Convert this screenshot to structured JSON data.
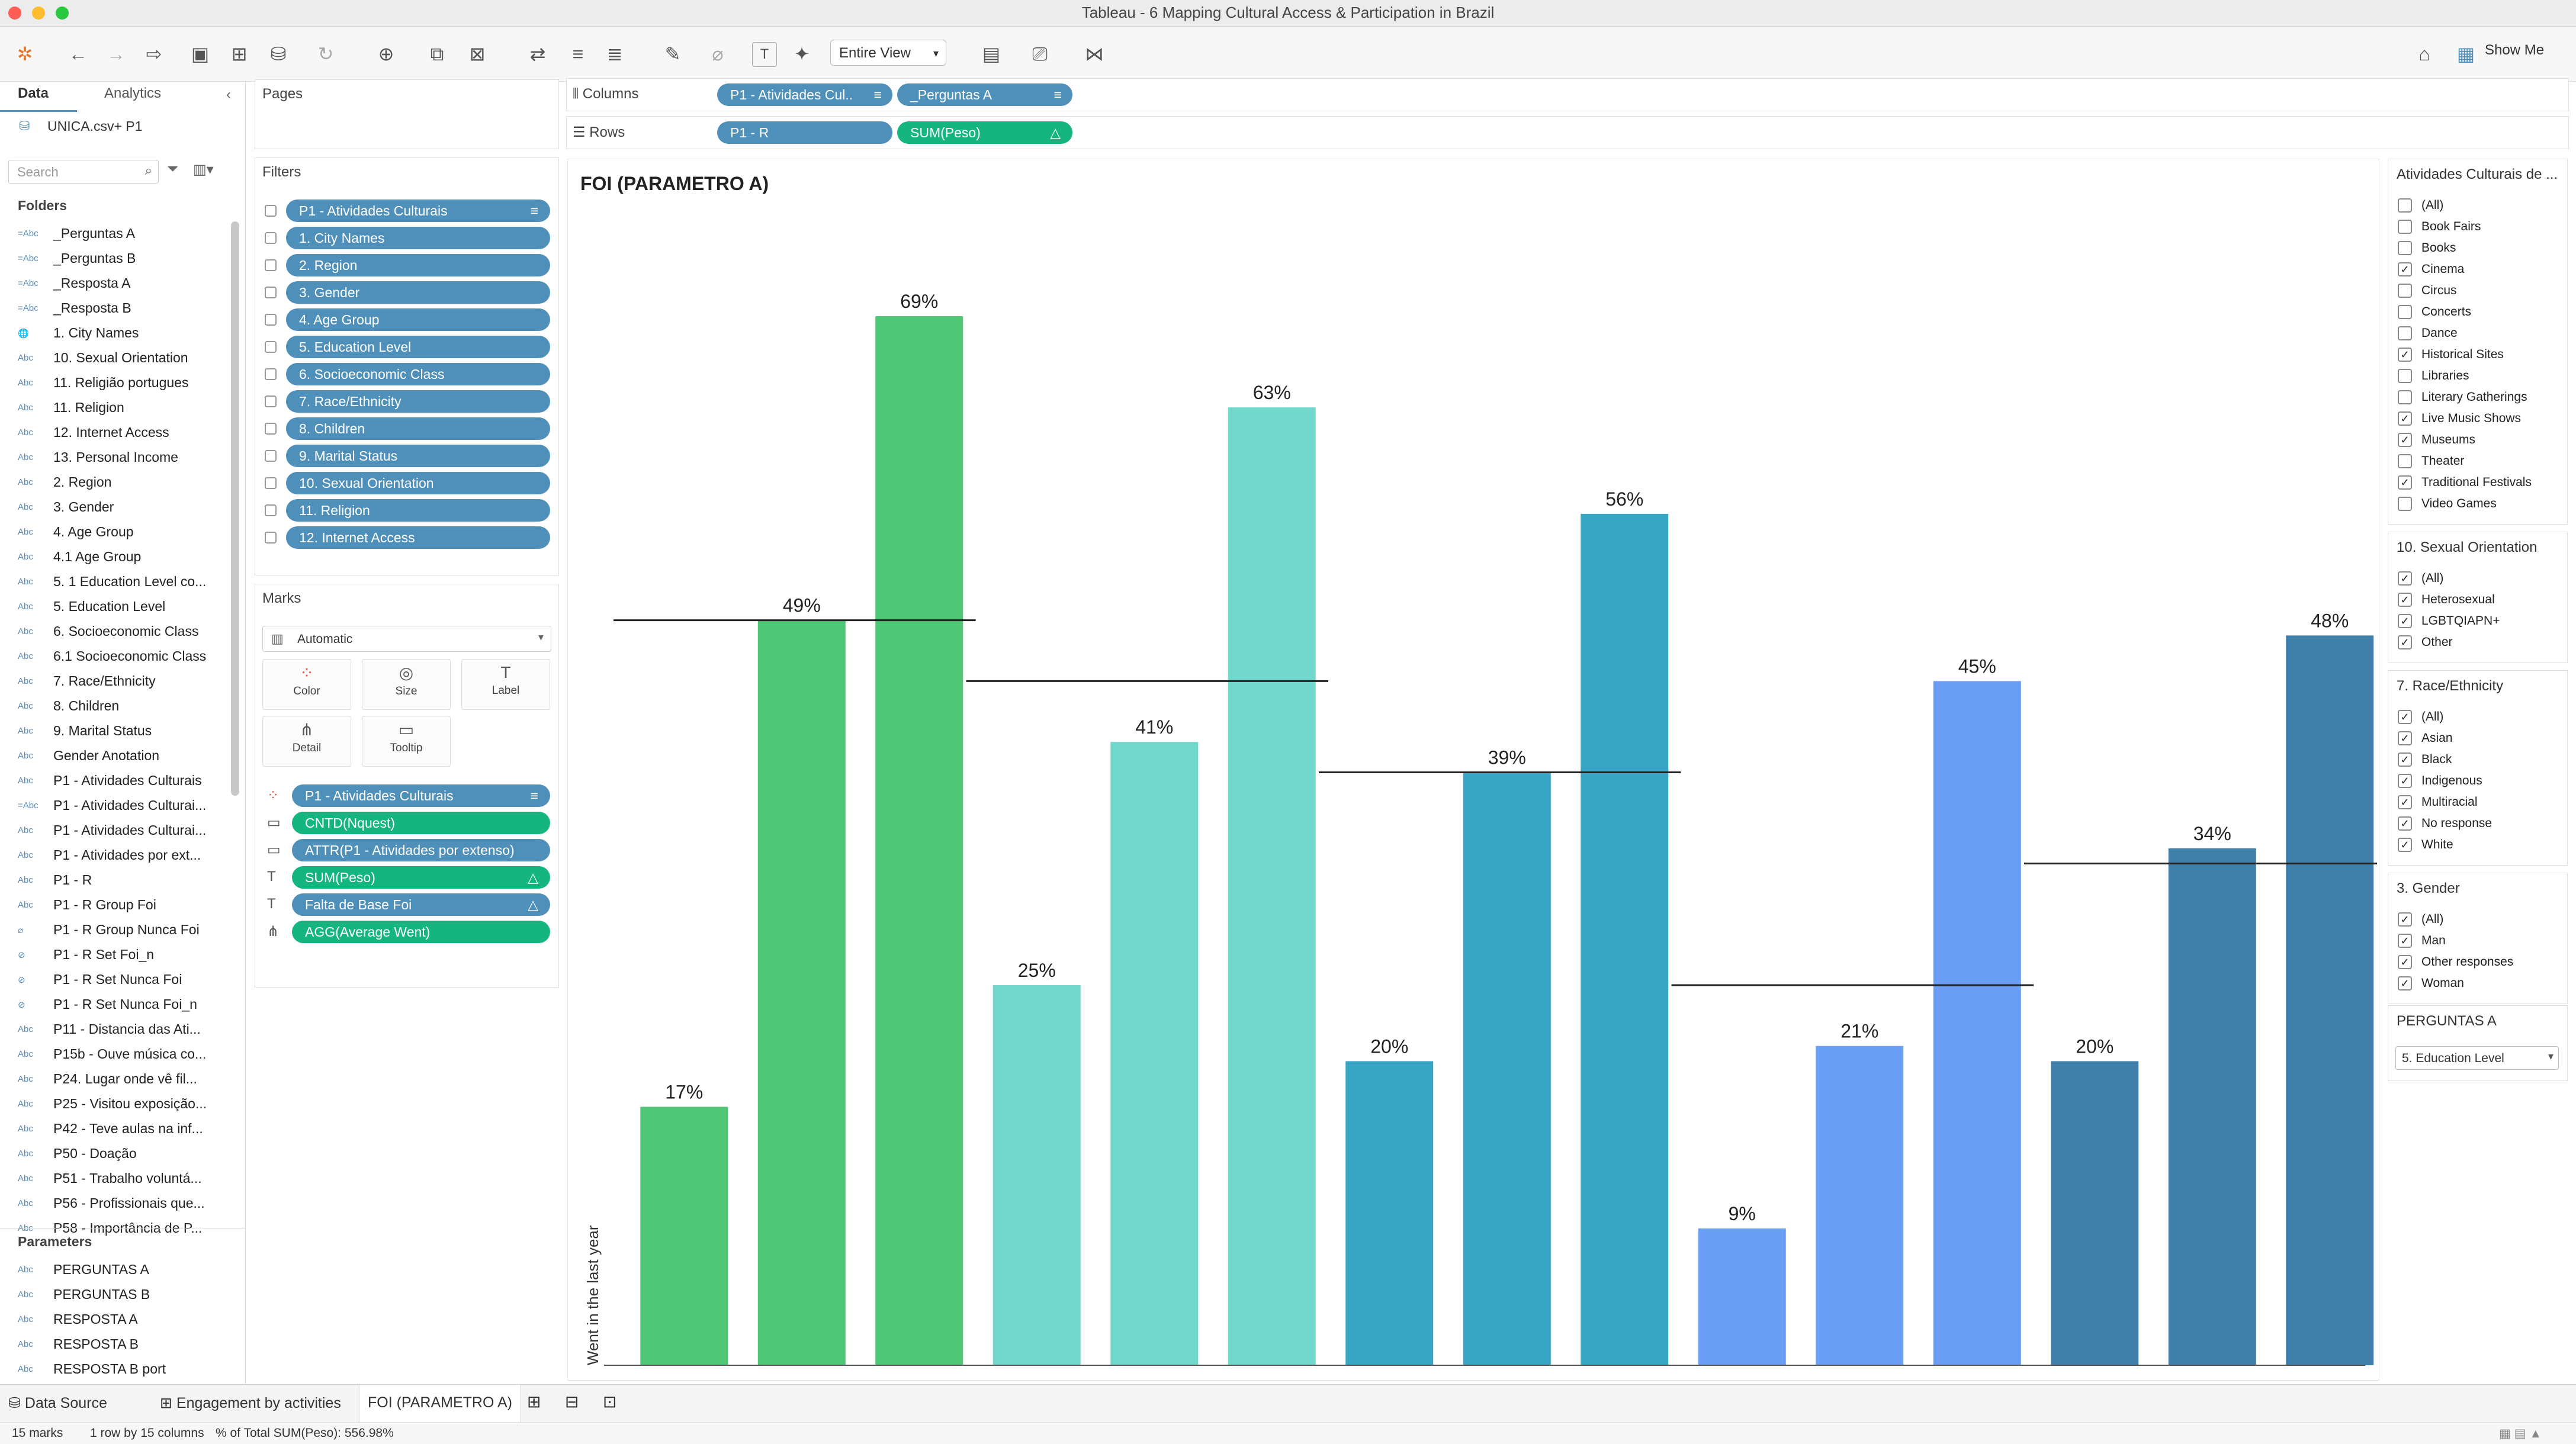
{
  "window": {
    "title": "Tableau - 6 Mapping Cultural Access & Participation in Brazil"
  },
  "toolbar": {
    "view_select": "Entire View",
    "show_me": "Show Me"
  },
  "left_panel": {
    "tabs": [
      "Data",
      "Analytics"
    ],
    "datasource": "UNICA.csv+ P1",
    "search_placeholder": "Search",
    "folders_header": "Folders",
    "fields": [
      {
        "type": "=Abc",
        "name": "_Perguntas A"
      },
      {
        "type": "=Abc",
        "name": "_Perguntas B"
      },
      {
        "type": "=Abc",
        "name": "_Resposta A"
      },
      {
        "type": "=Abc",
        "name": "_Resposta B"
      },
      {
        "type": "geo",
        "name": "1. City Names"
      },
      {
        "type": "Abc",
        "name": "10. Sexual Orientation"
      },
      {
        "type": "Abc",
        "name": "11. Religião portugues"
      },
      {
        "type": "Abc",
        "name": "11. Religion"
      },
      {
        "type": "Abc",
        "name": "12. Internet Access"
      },
      {
        "type": "Abc",
        "name": "13. Personal Income"
      },
      {
        "type": "Abc",
        "name": "2. Region"
      },
      {
        "type": "Abc",
        "name": "3. Gender"
      },
      {
        "type": "Abc",
        "name": "4. Age Group"
      },
      {
        "type": "Abc",
        "name": "4.1 Age Group"
      },
      {
        "type": "Abc",
        "name": "5. 1 Education Level co..."
      },
      {
        "type": "Abc",
        "name": "5. Education Level"
      },
      {
        "type": "Abc",
        "name": "6. Socioeconomic Class"
      },
      {
        "type": "Abc",
        "name": "6.1 Socioeconomic Class"
      },
      {
        "type": "Abc",
        "name": "7. Race/Ethnicity"
      },
      {
        "type": "Abc",
        "name": "8. Children"
      },
      {
        "type": "Abc",
        "name": "9. Marital Status"
      },
      {
        "type": "Abc",
        "name": "Gender Anotation"
      },
      {
        "type": "Abc",
        "name": "P1 - Atividades Culturais"
      },
      {
        "type": "=Abc",
        "name": "P1 - Atividades Culturai..."
      },
      {
        "type": "Abc",
        "name": "P1 - Atividades Culturai..."
      },
      {
        "type": "Abc",
        "name": "P1 - Atividades por ext..."
      },
      {
        "type": "Abc",
        "name": "P1 - R"
      },
      {
        "type": "Abc",
        "name": "P1 - R Group Foi"
      },
      {
        "type": "clip",
        "name": "P1 - R Group Nunca Foi"
      },
      {
        "type": "set",
        "name": "P1 - R Set Foi_n"
      },
      {
        "type": "set",
        "name": "P1 - R Set Nunca Foi"
      },
      {
        "type": "set",
        "name": "P1 - R Set Nunca Foi_n"
      },
      {
        "type": "Abc",
        "name": "P11 - Distancia das Ati..."
      },
      {
        "type": "Abc",
        "name": "P15b - Ouve música co..."
      },
      {
        "type": "Abc",
        "name": "P24. Lugar onde vê fil..."
      },
      {
        "type": "Abc",
        "name": "P25 - Visitou exposição..."
      },
      {
        "type": "Abc",
        "name": "P42 - Teve aulas na inf..."
      },
      {
        "type": "Abc",
        "name": "P50 - Doação"
      },
      {
        "type": "Abc",
        "name": "P51 - Trabalho voluntá..."
      },
      {
        "type": "Abc",
        "name": "P56 - Profissionais que..."
      },
      {
        "type": "Abc",
        "name": "P58 - Importância de P..."
      }
    ],
    "parameters_header": "Parameters",
    "parameters": [
      "PERGUNTAS A",
      "PERGUNTAS B",
      "RESPOSTA A",
      "RESPOSTA B",
      "RESPOSTA B port"
    ]
  },
  "pages": {
    "title": "Pages"
  },
  "filters": {
    "title": "Filters",
    "items": [
      "P1 - Atividades Culturais",
      "1. City Names",
      "2. Region",
      "3. Gender",
      "4. Age Group",
      "5. Education Level",
      "6. Socioeconomic Class",
      "7. Race/Ethnicity",
      "8. Children",
      "9. Marital Status",
      "10. Sexual Orientation",
      "11. Religion",
      "12. Internet Access"
    ]
  },
  "marks": {
    "title": "Marks",
    "type": "Automatic",
    "buttons": [
      "Color",
      "Size",
      "Label",
      "Detail",
      "Tooltip"
    ],
    "pills": [
      {
        "text": "P1 - Atividades Culturais",
        "color": "blue",
        "icon": "color-icon",
        "suffix": "≡"
      },
      {
        "text": "CNTD(Nquest)",
        "color": "green",
        "icon": "tooltip-icon",
        "suffix": ""
      },
      {
        "text": "ATTR(P1 - Atividades por extenso)",
        "color": "blue",
        "icon": "tooltip-icon",
        "suffix": ""
      },
      {
        "text": "SUM(Peso)",
        "color": "green",
        "icon": "label-icon",
        "suffix": "△"
      },
      {
        "text": "Falta de Base Foi",
        "color": "blue",
        "icon": "label-icon",
        "suffix": "△"
      },
      {
        "text": "AGG(Average Went)",
        "color": "green",
        "icon": "detail-icon",
        "suffix": ""
      }
    ]
  },
  "shelves": {
    "columns_label": "Columns",
    "rows_label": "Rows",
    "columns": [
      "P1 - Atividades Cul..",
      "_Perguntas A"
    ],
    "rows": [
      "P1 - R",
      "SUM(Peso)"
    ]
  },
  "view": {
    "title": "FOI (PARAMETRO A)"
  },
  "chart_data": {
    "type": "bar",
    "title": "FOI (PARAMETRO A)",
    "ylabel": "Went in the last year",
    "ylim": [
      0,
      75
    ],
    "grid": false,
    "groups": [
      {
        "bars": [
          17,
          49,
          69
        ],
        "average": 49,
        "color": "#4fc776"
      },
      {
        "bars": [
          25,
          41,
          63
        ],
        "average": 45,
        "color": "#72d8cc"
      },
      {
        "bars": [
          20,
          39,
          56
        ],
        "average": 39,
        "color": "#39a5c4"
      },
      {
        "bars": [
          9,
          21,
          45
        ],
        "average": 25,
        "color": "#6a9ff5"
      },
      {
        "bars": [
          20,
          34,
          48
        ],
        "average": 33,
        "color": "#3f7faa"
      }
    ],
    "labels": [
      "17%",
      "49%",
      "69%",
      "25%",
      "41%",
      "63%",
      "20%",
      "39%",
      "56%",
      "9%",
      "21%",
      "45%",
      "20%",
      "34%",
      "48%"
    ]
  },
  "right_filters": [
    {
      "title": "Atividades Culturais de ...",
      "items": [
        {
          "label": "(All)",
          "checked": false
        },
        {
          "label": "Book Fairs",
          "checked": false
        },
        {
          "label": "Books",
          "checked": false
        },
        {
          "label": "Cinema",
          "checked": true
        },
        {
          "label": "Circus",
          "checked": false
        },
        {
          "label": "Concerts",
          "checked": false
        },
        {
          "label": "Dance",
          "checked": false
        },
        {
          "label": "Historical Sites",
          "checked": true
        },
        {
          "label": "Libraries",
          "checked": false
        },
        {
          "label": "Literary Gatherings",
          "checked": false
        },
        {
          "label": "Live Music Shows",
          "checked": true
        },
        {
          "label": "Museums",
          "checked": true
        },
        {
          "label": "Theater",
          "checked": false
        },
        {
          "label": "Traditional Festivals",
          "checked": true
        },
        {
          "label": "Video Games",
          "checked": false
        }
      ]
    },
    {
      "title": "10. Sexual Orientation",
      "items": [
        {
          "label": "(All)",
          "checked": true
        },
        {
          "label": "Heterosexual",
          "checked": true
        },
        {
          "label": "LGBTQIAPN+",
          "checked": true
        },
        {
          "label": "Other",
          "checked": true
        }
      ]
    },
    {
      "title": "7. Race/Ethnicity",
      "items": [
        {
          "label": "(All)",
          "checked": true
        },
        {
          "label": "Asian",
          "checked": true
        },
        {
          "label": "Black",
          "checked": true
        },
        {
          "label": "Indigenous",
          "checked": true
        },
        {
          "label": "Multiracial",
          "checked": true
        },
        {
          "label": "No response",
          "checked": true
        },
        {
          "label": "White",
          "checked": true
        }
      ]
    },
    {
      "title": "3. Gender",
      "items": [
        {
          "label": "(All)",
          "checked": true
        },
        {
          "label": "Man",
          "checked": true
        },
        {
          "label": "Other responses",
          "checked": true
        },
        {
          "label": "Woman",
          "checked": true
        }
      ]
    }
  ],
  "parameter_control": {
    "title": "PERGUNTAS A",
    "value": "5. Education Level"
  },
  "sheet_tabs": {
    "data_source": "Data Source",
    "tabs": [
      "Engagement by activities",
      "FOI (PARAMETRO A)"
    ]
  },
  "status": {
    "marks": "15 marks",
    "rows_cols": "1 row by 15 columns",
    "sum": "% of Total SUM(Peso): 556.98%"
  }
}
